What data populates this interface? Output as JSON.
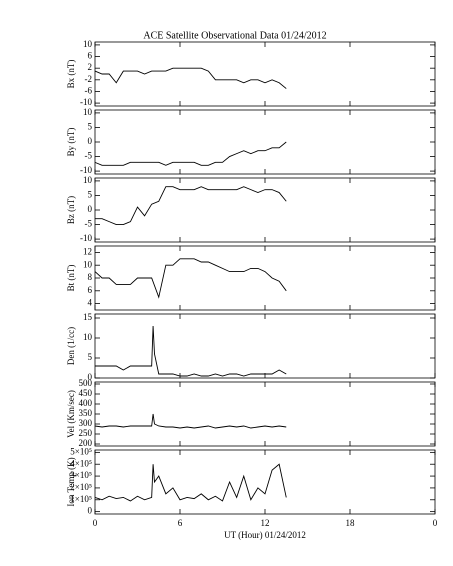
{
  "chart_data": [
    {
      "type": "line",
      "title": "ACE Satellite Observational Data   01/24/2012",
      "ylabel": "Bx (nT)",
      "x": [
        0,
        0.5,
        1,
        1.5,
        2,
        2.5,
        3,
        3.5,
        4,
        4.5,
        5,
        5.5,
        6,
        6.5,
        7,
        7.5,
        8,
        8.5,
        9,
        9.5,
        10,
        10.5,
        11,
        11.5,
        12,
        12.5,
        13,
        13.5
      ],
      "values": [
        1,
        0,
        0,
        -3,
        1,
        1,
        1,
        0,
        1,
        1,
        1,
        2,
        2,
        2,
        2,
        2,
        1,
        -2,
        -2,
        -2,
        -2,
        -3,
        -2,
        -2,
        -3,
        -2,
        -3,
        -5
      ],
      "xlim": [
        0,
        24
      ],
      "xticks": [
        0,
        6,
        12,
        18,
        {
          "value": 24,
          "label": "0"
        }
      ],
      "ylim": [
        -11,
        11
      ],
      "yticks": [
        -10,
        -6,
        -2,
        2,
        6,
        10
      ],
      "color": "#000000"
    },
    {
      "type": "line",
      "ylabel": "By (nT)",
      "x": [
        0,
        0.5,
        1,
        1.5,
        2,
        2.5,
        3,
        3.5,
        4,
        4.5,
        5,
        5.5,
        6,
        6.5,
        7,
        7.5,
        8,
        8.5,
        9,
        9.5,
        10,
        10.5,
        11,
        11.5,
        12,
        12.5,
        13,
        13.5
      ],
      "values": [
        -7,
        -8,
        -8,
        -8,
        -8,
        -7,
        -7,
        -7,
        -7,
        -7,
        -8,
        -7,
        -7,
        -7,
        -7,
        -8,
        -8,
        -7,
        -7,
        -5,
        -4,
        -3,
        -4,
        -3,
        -3,
        -2,
        -2,
        0
      ],
      "xlim": [
        0,
        24
      ],
      "xticks": [
        0,
        6,
        12,
        18,
        {
          "value": 24,
          "label": "0"
        }
      ],
      "ylim": [
        -11,
        11
      ],
      "yticks": [
        -10,
        -5,
        0,
        5,
        10
      ],
      "color": "#000000"
    },
    {
      "type": "line",
      "ylabel": "Bz (nT)",
      "x": [
        0,
        0.5,
        1,
        1.5,
        2,
        2.5,
        3,
        3.5,
        4,
        4.5,
        5,
        5.5,
        6,
        6.5,
        7,
        7.5,
        8,
        8.5,
        9,
        9.5,
        10,
        10.5,
        11,
        11.5,
        12,
        12.5,
        13,
        13.5
      ],
      "values": [
        -3,
        -3,
        -4,
        -5,
        -5,
        -4,
        1,
        -2,
        2,
        3,
        8,
        8,
        7,
        7,
        7,
        8,
        7,
        7,
        7,
        7,
        7,
        8,
        7,
        6,
        7,
        7,
        6,
        3
      ],
      "xlim": [
        0,
        24
      ],
      "xticks": [
        0,
        6,
        12,
        18,
        {
          "value": 24,
          "label": "0"
        }
      ],
      "ylim": [
        -11,
        11
      ],
      "yticks": [
        -10,
        -5,
        0,
        5,
        10
      ],
      "color": "#000000"
    },
    {
      "type": "line",
      "ylabel": "Bt (nT)",
      "x": [
        0,
        0.5,
        1,
        1.5,
        2,
        2.5,
        3,
        3.5,
        4,
        4.5,
        5,
        5.5,
        6,
        6.5,
        7,
        7.5,
        8,
        8.5,
        9,
        9.5,
        10,
        10.5,
        11,
        11.5,
        12,
        12.5,
        13,
        13.5
      ],
      "values": [
        9,
        8,
        8,
        7,
        7,
        7,
        8,
        8,
        8,
        5,
        10,
        10,
        11,
        11,
        11,
        10.5,
        10.5,
        10,
        9.5,
        9,
        9,
        9,
        9.5,
        9.5,
        9,
        8,
        7.5,
        6
      ],
      "xlim": [
        0,
        24
      ],
      "xticks": [
        0,
        6,
        12,
        18,
        {
          "value": 24,
          "label": "0"
        }
      ],
      "ylim": [
        3,
        13
      ],
      "yticks": [
        4,
        6,
        8,
        10,
        12
      ],
      "color": "#000000"
    },
    {
      "type": "line",
      "ylabel": "Den (1/cc)",
      "x": [
        0,
        0.5,
        1,
        1.5,
        2,
        2.5,
        3,
        3.5,
        4,
        4.1,
        4.2,
        4.5,
        5,
        5.5,
        6,
        6.5,
        7,
        7.5,
        8,
        8.5,
        9,
        9.5,
        10,
        10.5,
        11,
        11.5,
        12,
        12.5,
        13,
        13.5
      ],
      "values": [
        3,
        3,
        3,
        3,
        2,
        3,
        3,
        3,
        3,
        13,
        6,
        1,
        1,
        1,
        0.5,
        0.5,
        1,
        0.5,
        0.5,
        1,
        0.5,
        1,
        1,
        0.5,
        1,
        1,
        1,
        1,
        2,
        1
      ],
      "xlim": [
        0,
        24
      ],
      "xticks": [
        0,
        6,
        12,
        18,
        {
          "value": 24,
          "label": "0"
        }
      ],
      "ylim": [
        0,
        16
      ],
      "yticks": [
        0,
        5,
        10,
        15
      ],
      "color": "#000000"
    },
    {
      "type": "line",
      "ylabel": "Vel (Km/sec)",
      "x": [
        0,
        0.5,
        1,
        1.5,
        2,
        2.5,
        3,
        3.5,
        4,
        4.1,
        4.2,
        4.5,
        5,
        5.5,
        6,
        6.5,
        7,
        7.5,
        8,
        8.5,
        9,
        9.5,
        10,
        10.5,
        11,
        11.5,
        12,
        12.5,
        13,
        13.5
      ],
      "values": [
        290,
        285,
        290,
        290,
        285,
        290,
        290,
        290,
        290,
        350,
        300,
        290,
        285,
        285,
        280,
        285,
        280,
        285,
        290,
        280,
        285,
        290,
        285,
        290,
        280,
        285,
        290,
        285,
        290,
        285
      ],
      "xlim": [
        0,
        24
      ],
      "xticks": [
        0,
        6,
        12,
        18,
        {
          "value": 24,
          "label": "0"
        }
      ],
      "ylim": [
        190,
        510
      ],
      "yticks": [
        200,
        250,
        300,
        350,
        400,
        450,
        500
      ],
      "color": "#000000"
    },
    {
      "type": "line",
      "ylabel": "Ion Temp (K)",
      "xlabel": "UT (Hour)  01/24/2012",
      "x": [
        0,
        0.5,
        1,
        1.5,
        2,
        2.5,
        3,
        3.5,
        4,
        4.1,
        4.2,
        4.5,
        5,
        5.5,
        6,
        6.5,
        7,
        7.5,
        8,
        8.5,
        9,
        9.5,
        10,
        10.5,
        11,
        11.5,
        12,
        12.5,
        13,
        13.5
      ],
      "values": [
        120000,
        100000,
        130000,
        110000,
        120000,
        90000,
        130000,
        100000,
        120000,
        400000,
        250000,
        300000,
        150000,
        200000,
        100000,
        120000,
        110000,
        150000,
        100000,
        130000,
        90000,
        250000,
        120000,
        300000,
        100000,
        200000,
        150000,
        350000,
        400000,
        120000
      ],
      "xlim": [
        0,
        24
      ],
      "xticks": [
        0,
        6,
        12,
        18,
        {
          "value": 24,
          "label": "0"
        }
      ],
      "ylim": [
        -20000,
        520000
      ],
      "yticks": [
        0,
        {
          "value": 100000,
          "label": "1×10⁵"
        },
        {
          "value": 200000,
          "label": "2×10⁵"
        },
        {
          "value": 300000,
          "label": "3×10⁵"
        },
        {
          "value": 400000,
          "label": "4×10⁵"
        },
        {
          "value": 500000,
          "label": "5×10⁵"
        }
      ],
      "color": "#000000"
    }
  ]
}
